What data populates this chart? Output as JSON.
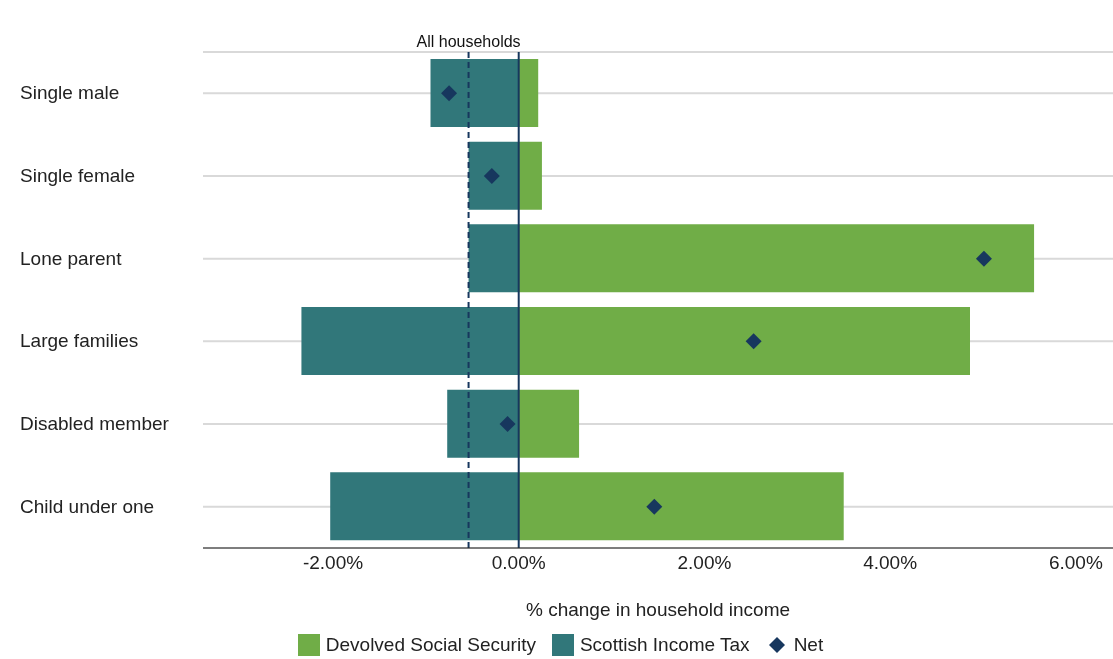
{
  "chart_data": {
    "type": "bar",
    "orientation": "horizontal",
    "stacked": true,
    "xlabel": "% change in household income",
    "categories": [
      "Single male",
      "Single female",
      "Lone parent",
      "Large families",
      "Disabled member",
      "Child under one"
    ],
    "series": [
      {
        "name": "Devolved Social Security",
        "color": "#70ad47",
        "values": [
          0.21,
          0.25,
          5.55,
          4.86,
          0.65,
          3.5
        ]
      },
      {
        "name": "Scottish Income Tax",
        "color": "#31777a",
        "values": [
          -0.95,
          -0.54,
          -0.54,
          -2.34,
          -0.77,
          -2.03
        ]
      },
      {
        "name": "Net",
        "type": "scatter",
        "marker": "diamond",
        "color": "#17375e",
        "values": [
          -0.75,
          -0.29,
          5.01,
          2.53,
          -0.12,
          1.46
        ]
      }
    ],
    "xlim": [
      -3.4,
      6.4
    ],
    "xticks": [
      {
        "value": -2,
        "label": "-2.00%"
      },
      {
        "value": 0,
        "label": "0.00%"
      },
      {
        "value": 2,
        "label": "2.00%"
      },
      {
        "value": 4,
        "label": "4.00%"
      },
      {
        "value": 6,
        "label": "6.00%"
      }
    ],
    "ref_lines": [
      {
        "axis": "x",
        "value": -0.54,
        "label": "All households",
        "color": "#17375e",
        "line_style": "dashed"
      },
      {
        "axis": "x",
        "value": 0,
        "color": "#17375e",
        "line_style": "solid"
      }
    ],
    "grid": "y",
    "legend": "bottom"
  }
}
